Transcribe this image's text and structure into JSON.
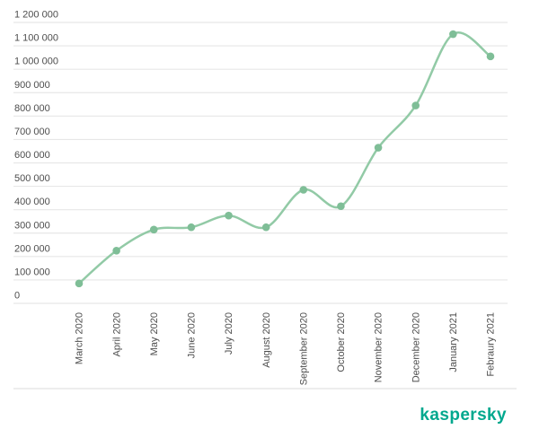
{
  "chart_data": {
    "type": "line",
    "title": "",
    "xlabel": "",
    "ylabel": "",
    "categories": [
      "March 2020",
      "April 2020",
      "May 2020",
      "June 2020",
      "July 2020",
      "August 2020",
      "September 2020",
      "October 2020",
      "November 2020",
      "December 2020",
      "January 2021",
      "Febraury 2021"
    ],
    "values": [
      85000,
      225000,
      315000,
      325000,
      375000,
      325000,
      485000,
      415000,
      665000,
      845000,
      1150000,
      1055000
    ],
    "ylim": [
      0,
      1200000
    ],
    "y_ticks": [
      {
        "value": 1200000,
        "label": "1 200 000"
      },
      {
        "value": 1100000,
        "label": "1 100 000"
      },
      {
        "value": 1000000,
        "label": "1 000 000"
      },
      {
        "value": 900000,
        "label": "900 000"
      },
      {
        "value": 800000,
        "label": "800 000"
      },
      {
        "value": 700000,
        "label": "700 000"
      },
      {
        "value": 600000,
        "label": "600 000"
      },
      {
        "value": 500000,
        "label": "500 000"
      },
      {
        "value": 400000,
        "label": "400 000"
      },
      {
        "value": 300000,
        "label": "300 000"
      },
      {
        "value": 200000,
        "label": "200 000"
      },
      {
        "value": 100000,
        "label": "100 000"
      },
      {
        "value": 0,
        "label": "0"
      }
    ],
    "grid": "horizontal-only",
    "legend": "none",
    "colors": {
      "line": "#92CAA6",
      "marker": "#7FBE97",
      "grid_line": "#e7e7e7",
      "tick_label": "#4d4d4d"
    }
  },
  "footer": {
    "brand": "kaspersky",
    "brand_color": "#00A88E"
  }
}
